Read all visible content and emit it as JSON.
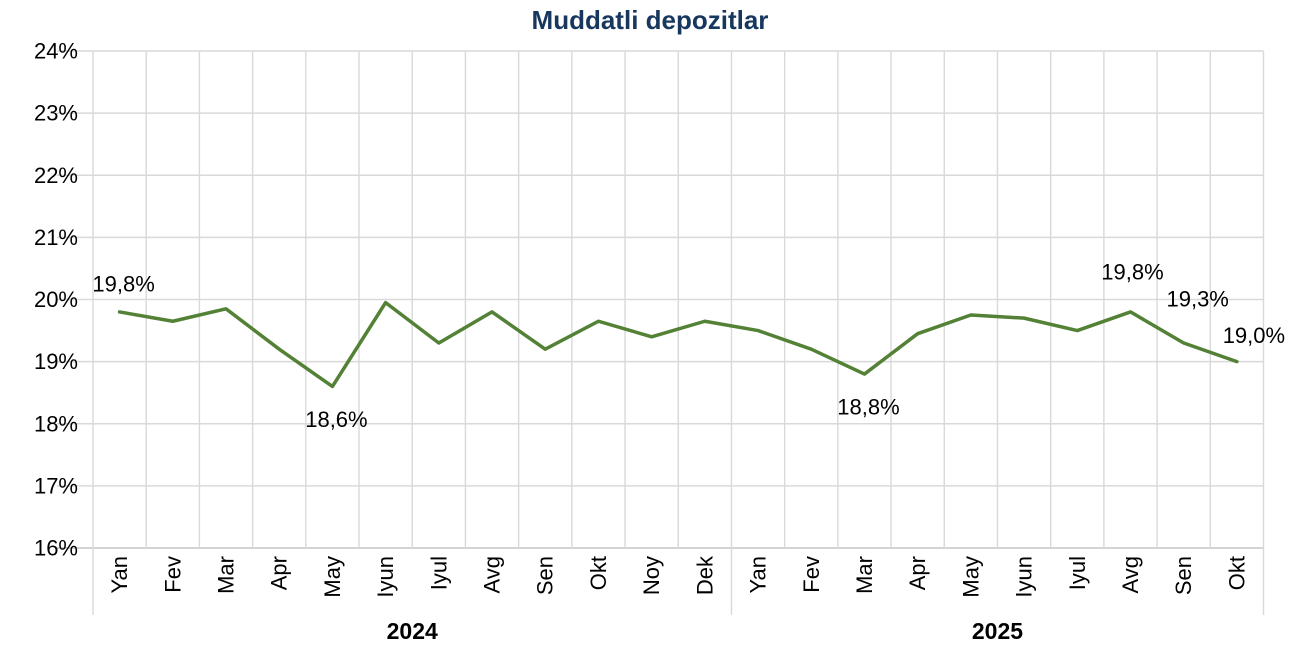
{
  "colors": {
    "title": "#17375E",
    "line": "#538135",
    "grid": "#D9D9D9",
    "axis_line": "#C6C6C6",
    "axis_text": "#000000",
    "background": "#FFFFFF"
  },
  "chart_data": {
    "type": "line",
    "title": "Muddatli depozitlar",
    "xlabel": "",
    "ylabel": "",
    "ylim": [
      16,
      24
    ],
    "y_ticks": [
      "24%",
      "23%",
      "22%",
      "21%",
      "20%",
      "19%",
      "18%",
      "17%",
      "16%"
    ],
    "grid": true,
    "legend": false,
    "groups": [
      {
        "year": "2024",
        "count": 12
      },
      {
        "year": "2025",
        "count": 10
      }
    ],
    "categories": [
      "Yan",
      "Fev",
      "Mar",
      "Apr",
      "May",
      "Iyun",
      "Iyul",
      "Avg",
      "Sen",
      "Okt",
      "Noy",
      "Dek",
      "Yan",
      "Fev",
      "Mar",
      "Apr",
      "May",
      "Iyun",
      "Iyul",
      "Avg",
      "Sen",
      "Okt"
    ],
    "series": [
      {
        "name": "Muddatli depozitlar",
        "color": "#538135",
        "values": [
          19.8,
          19.65,
          19.85,
          19.2,
          18.6,
          19.95,
          19.3,
          19.8,
          19.2,
          19.65,
          19.4,
          19.65,
          19.5,
          19.2,
          18.8,
          19.45,
          19.75,
          19.7,
          19.5,
          19.8,
          19.3,
          19.0
        ],
        "point_labels": {
          "0": "19,8%",
          "4": "18,6%",
          "14": "18,8%",
          "19": "19,8%",
          "20": "19,3%",
          "21": "19,0%"
        }
      }
    ]
  }
}
